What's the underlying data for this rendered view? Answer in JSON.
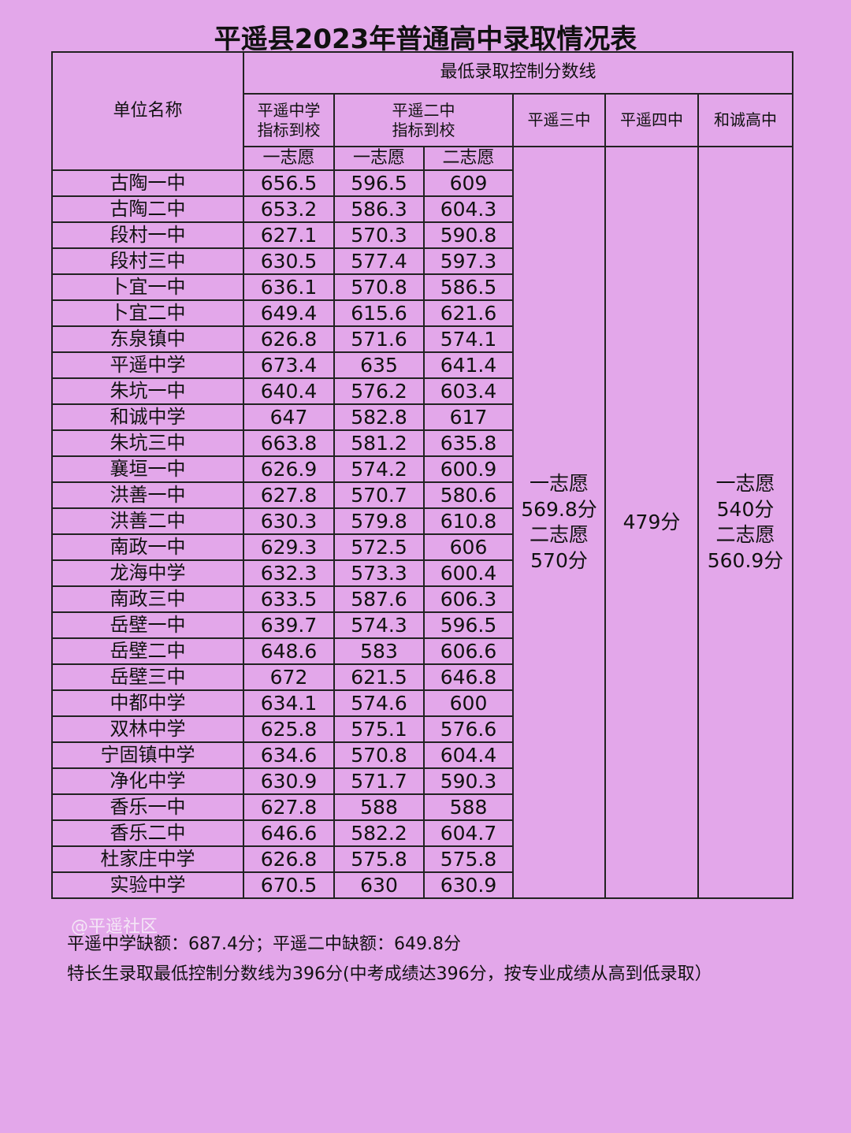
{
  "title": "平遥县2023年普通高中录取情况表",
  "table": {
    "col_unit": "单位名称",
    "col_group": "最低录取控制分数线",
    "col_pyzx": [
      "平遥中学",
      "指标到校"
    ],
    "col_pyez": [
      "平遥二中",
      "指标到校"
    ],
    "col_py3": "平遥三中",
    "col_py4": "平遥四中",
    "col_hc": "和诚高中",
    "sub": [
      "一志愿",
      "一志愿",
      "二志愿"
    ],
    "rows": [
      [
        "古陶一中",
        656.5,
        596.5,
        609
      ],
      [
        "古陶二中",
        653.2,
        586.3,
        604.3
      ],
      [
        "段村一中",
        627.1,
        570.3,
        590.8
      ],
      [
        "段村三中",
        630.5,
        577.4,
        597.3
      ],
      [
        "卜宜一中",
        636.1,
        570.8,
        586.5
      ],
      [
        "卜宜二中",
        649.4,
        615.6,
        621.6
      ],
      [
        "东泉镇中",
        626.8,
        571.6,
        574.1
      ],
      [
        "平遥中学",
        673.4,
        635,
        641.4
      ],
      [
        "朱坑一中",
        640.4,
        576.2,
        603.4
      ],
      [
        "和诚中学",
        647,
        582.8,
        617
      ],
      [
        "朱坑三中",
        663.8,
        581.2,
        635.8
      ],
      [
        "襄垣一中",
        626.9,
        574.2,
        600.9
      ],
      [
        "洪善一中",
        627.8,
        570.7,
        580.6
      ],
      [
        "洪善二中",
        630.3,
        579.8,
        610.8
      ],
      [
        "南政一中",
        629.3,
        572.5,
        606
      ],
      [
        "龙海中学",
        632.3,
        573.3,
        600.4
      ],
      [
        "南政三中",
        633.5,
        587.6,
        606.3
      ],
      [
        "岳壁一中",
        639.7,
        574.3,
        596.5
      ],
      [
        "岳壁二中",
        648.6,
        583,
        606.6
      ],
      [
        "岳壁三中",
        672,
        621.5,
        646.8
      ],
      [
        "中都中学",
        634.1,
        574.6,
        600
      ],
      [
        "双林中学",
        625.8,
        575.1,
        576.6
      ],
      [
        "宁固镇中学",
        634.6,
        570.8,
        604.4
      ],
      [
        "净化中学",
        630.9,
        571.7,
        590.3
      ],
      [
        "香乐一中",
        627.8,
        588,
        588
      ],
      [
        "香乐二中",
        646.6,
        582.2,
        604.7
      ],
      [
        "杜家庄中学",
        626.8,
        575.8,
        575.8
      ],
      [
        "实验中学",
        670.5,
        630,
        630.9
      ]
    ],
    "py3_cell": [
      "一志愿",
      "569.8分",
      "二志愿",
      "570分"
    ],
    "py4_cell": "479分",
    "hc_cell": [
      "一志愿",
      "540分",
      "二志愿",
      "560.9分"
    ]
  },
  "watermark": "@平遥社区",
  "notes": [
    "平遥中学缺额：687.4分；平遥二中缺额：649.8分",
    "特长生录取最低控制分数线为396分(中考成绩达396分，按专业成绩从高到低录取）"
  ]
}
